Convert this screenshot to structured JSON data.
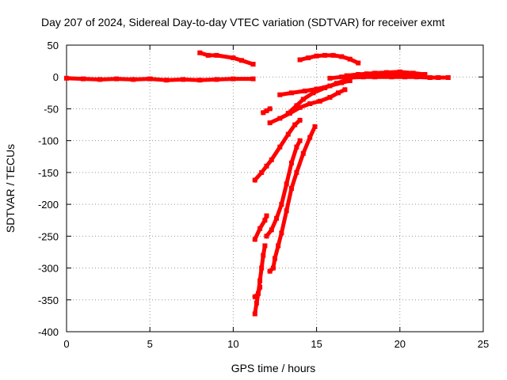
{
  "chart_data": {
    "type": "scatter",
    "title": "Day 207 of 2024, Sidereal Day-to-day VTEC variation (SDTVAR) for receiver exmt",
    "xlabel": "GPS time / hours",
    "ylabel": "SDTVAR / TECUs",
    "xlim": [
      0,
      25
    ],
    "ylim": [
      -400,
      50
    ],
    "xticks": [
      0,
      5,
      10,
      15,
      20,
      25
    ],
    "yticks": [
      50,
      0,
      -50,
      -100,
      -150,
      -200,
      -250,
      -300,
      -350,
      -400
    ],
    "grid": true,
    "grid_style": "dotted",
    "color": "#ff0000",
    "series": [
      {
        "points": [
          [
            0.0,
            -2
          ],
          [
            1.0,
            -3
          ],
          [
            2.0,
            -4
          ],
          [
            3.0,
            -3
          ],
          [
            4.0,
            -4
          ],
          [
            5.0,
            -3
          ],
          [
            6.0,
            -5
          ],
          [
            7.0,
            -4
          ],
          [
            8.0,
            -5
          ],
          [
            9.0,
            -4
          ],
          [
            10.0,
            -3
          ],
          [
            11.2,
            -3
          ]
        ]
      },
      {
        "points": [
          [
            8.0,
            38
          ],
          [
            8.5,
            34
          ],
          [
            9.0,
            34
          ],
          [
            10.0,
            30
          ],
          [
            10.5,
            26
          ],
          [
            11.2,
            20
          ]
        ]
      },
      {
        "points": [
          [
            11.3,
            -162
          ],
          [
            11.7,
            -150
          ],
          [
            12.0,
            -140
          ],
          [
            12.3,
            -130
          ],
          [
            12.8,
            -110
          ],
          [
            13.3,
            -90
          ],
          [
            13.7,
            -75
          ],
          [
            14.0,
            -68
          ]
        ]
      },
      {
        "points": [
          [
            11.3,
            -255
          ],
          [
            11.6,
            -238
          ],
          [
            11.9,
            -225
          ],
          [
            12.0,
            -218
          ]
        ]
      },
      {
        "points": [
          [
            11.3,
            -372
          ],
          [
            11.4,
            -355
          ],
          [
            11.5,
            -340
          ],
          [
            11.6,
            -320
          ],
          [
            11.7,
            -300
          ],
          [
            11.8,
            -280
          ],
          [
            11.9,
            -265
          ]
        ]
      },
      {
        "points": [
          [
            11.3,
            -345
          ],
          [
            11.5,
            -340
          ],
          [
            11.6,
            -330
          ]
        ]
      },
      {
        "points": [
          [
            12.2,
            -305
          ],
          [
            12.4,
            -300
          ],
          [
            12.5,
            -285
          ],
          [
            12.7,
            -265
          ],
          [
            12.9,
            -245
          ],
          [
            13.2,
            -210
          ],
          [
            13.5,
            -175
          ],
          [
            13.8,
            -150
          ],
          [
            14.2,
            -120
          ],
          [
            14.6,
            -95
          ],
          [
            14.9,
            -78
          ]
        ]
      },
      {
        "points": [
          [
            12.0,
            -250
          ],
          [
            12.3,
            -240
          ],
          [
            12.6,
            -222
          ],
          [
            12.9,
            -200
          ],
          [
            13.2,
            -168
          ],
          [
            13.5,
            -135
          ],
          [
            13.8,
            -110
          ],
          [
            14.0,
            -100
          ]
        ]
      },
      {
        "points": [
          [
            11.8,
            -56
          ],
          [
            12.0,
            -53
          ],
          [
            12.2,
            -50
          ]
        ]
      },
      {
        "points": [
          [
            12.2,
            -72
          ],
          [
            12.8,
            -65
          ],
          [
            13.4,
            -57
          ],
          [
            14.0,
            -48
          ],
          [
            14.6,
            -42
          ],
          [
            15.2,
            -38
          ],
          [
            15.8,
            -32
          ],
          [
            16.3,
            -25
          ],
          [
            16.7,
            -20
          ]
        ]
      },
      {
        "points": [
          [
            13.3,
            -57
          ],
          [
            13.8,
            -45
          ],
          [
            14.2,
            -35
          ],
          [
            14.8,
            -25
          ],
          [
            15.5,
            -17
          ],
          [
            16.2,
            -10
          ],
          [
            16.8,
            -5
          ]
        ]
      },
      {
        "points": [
          [
            12.8,
            -28
          ],
          [
            13.5,
            -25
          ],
          [
            14.3,
            -22
          ],
          [
            15.0,
            -19
          ],
          [
            15.8,
            -14
          ],
          [
            16.5,
            -9
          ],
          [
            17.0,
            -6
          ]
        ]
      },
      {
        "points": [
          [
            14.0,
            27
          ],
          [
            14.5,
            30
          ],
          [
            15.0,
            33
          ],
          [
            15.5,
            34
          ],
          [
            16.0,
            34
          ],
          [
            16.5,
            32
          ],
          [
            17.0,
            28
          ],
          [
            17.5,
            22
          ]
        ]
      },
      {
        "points": [
          [
            15.8,
            -2
          ],
          [
            16.5,
            0
          ],
          [
            17.0,
            1
          ],
          [
            17.5,
            3
          ],
          [
            18.0,
            3
          ],
          [
            18.5,
            4
          ],
          [
            19.0,
            5
          ],
          [
            19.5,
            5
          ],
          [
            20.0,
            6
          ],
          [
            20.5,
            5
          ],
          [
            21.0,
            4
          ],
          [
            21.5,
            3
          ]
        ]
      },
      {
        "points": [
          [
            17.0,
            -1
          ],
          [
            17.8,
            0
          ],
          [
            18.5,
            0
          ],
          [
            19.5,
            0
          ],
          [
            20.3,
            0
          ],
          [
            21.0,
            0
          ],
          [
            21.8,
            -1
          ],
          [
            22.3,
            -1
          ],
          [
            22.9,
            -1
          ]
        ]
      },
      {
        "points": [
          [
            16.8,
            2
          ],
          [
            17.5,
            4
          ],
          [
            18.0,
            5
          ],
          [
            18.5,
            6
          ],
          [
            19.2,
            7
          ],
          [
            20.0,
            8
          ],
          [
            20.8,
            6
          ],
          [
            21.5,
            4
          ]
        ]
      }
    ]
  }
}
